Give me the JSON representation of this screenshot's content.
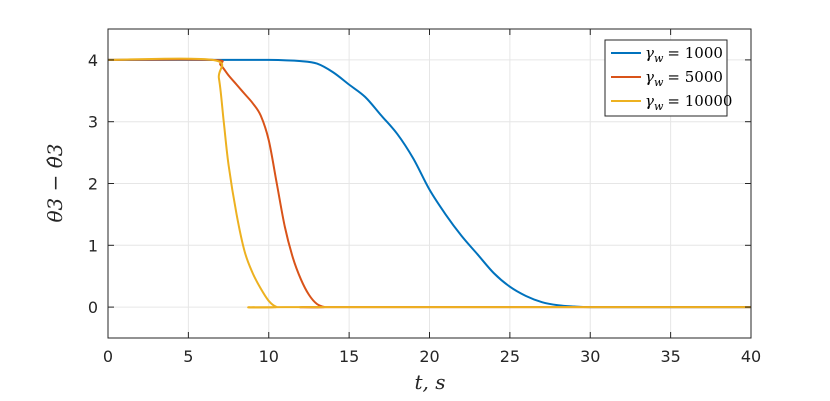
{
  "chart_data": {
    "type": "line",
    "xlabel": "t, s",
    "ylabel": "θ3 − θ̂3",
    "xlim": [
      0,
      40
    ],
    "ylim": [
      -0.5,
      4.5
    ],
    "xticks": [
      0,
      5,
      10,
      15,
      20,
      25,
      30,
      35,
      40
    ],
    "yticks": [
      0,
      1,
      2,
      3,
      4
    ],
    "grid": true,
    "legend_position": "top-right",
    "series": [
      {
        "name": "γw = 1000",
        "name_symbol": "γ",
        "name_subscript": "w",
        "name_value": "= 1000",
        "color": "#0072BD",
        "x": [
          0,
          6.5,
          10,
          12,
          13,
          14,
          15,
          16,
          17,
          18,
          19,
          20,
          21,
          22,
          23,
          24,
          25,
          26,
          27,
          28,
          29,
          30,
          32,
          35,
          40
        ],
        "y": [
          4,
          4,
          4.0,
          3.98,
          3.94,
          3.8,
          3.6,
          3.4,
          3.1,
          2.8,
          2.4,
          1.9,
          1.5,
          1.15,
          0.85,
          0.55,
          0.33,
          0.18,
          0.08,
          0.03,
          0.01,
          0.0,
          0,
          0,
          0
        ]
      },
      {
        "name": "γw = 5000",
        "name_symbol": "γ",
        "name_subscript": "w",
        "name_value": "= 5000",
        "color": "#D95319",
        "x": [
          0,
          6.5,
          7,
          7.5,
          8,
          8.5,
          9,
          9.5,
          10,
          10.5,
          11,
          11.5,
          12,
          12.5,
          13,
          13.5,
          14,
          40
        ],
        "y": [
          4,
          4,
          3.92,
          3.75,
          3.6,
          3.45,
          3.3,
          3.1,
          2.7,
          2.0,
          1.3,
          0.8,
          0.45,
          0.2,
          0.05,
          0.0,
          0,
          0
        ]
      },
      {
        "name": "γw = 10000",
        "name_symbol": "γ",
        "name_subscript": "w",
        "name_value": "= 10000",
        "color": "#EDB120",
        "x": [
          0,
          6.5,
          6.9,
          7.2,
          7.5,
          8,
          8.5,
          9,
          9.5,
          10,
          10.5,
          11,
          40
        ],
        "y": [
          4,
          4,
          3.7,
          3.0,
          2.3,
          1.5,
          0.9,
          0.55,
          0.3,
          0.1,
          0.0,
          0,
          0
        ]
      }
    ]
  }
}
